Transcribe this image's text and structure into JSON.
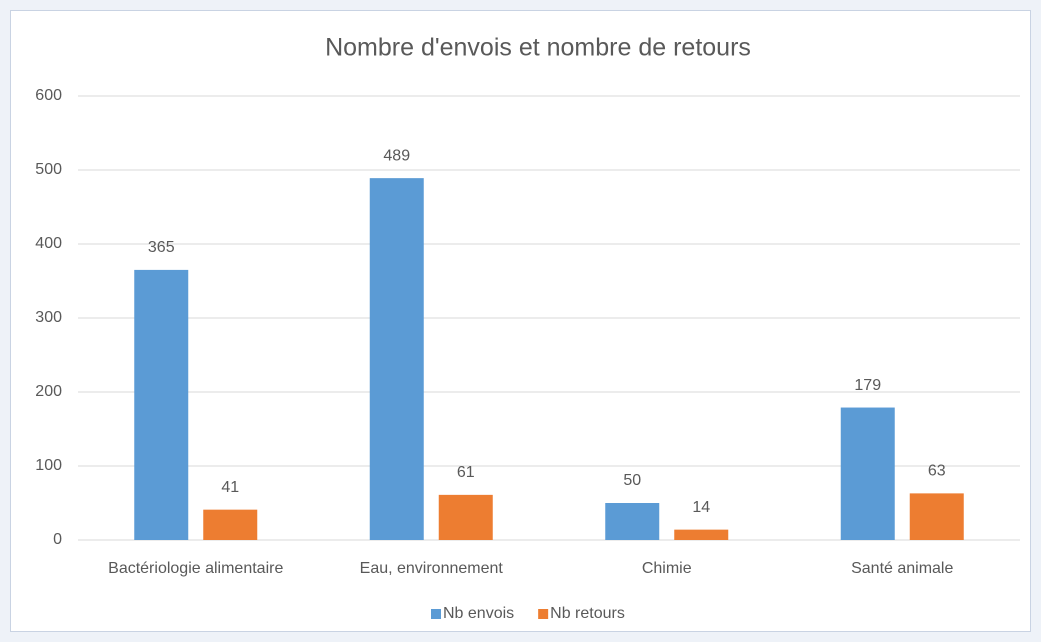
{
  "chart_data": {
    "type": "bar",
    "title": "Nombre d'envois et nombre de retours",
    "categories": [
      "Bactériologie alimentaire",
      "Eau, environnement",
      "Chimie",
      "Santé animale"
    ],
    "series": [
      {
        "name": "Nb envois",
        "color": "#5b9bd5",
        "values": [
          365,
          489,
          50,
          179
        ]
      },
      {
        "name": "Nb retours",
        "color": "#ed7d31",
        "values": [
          41,
          61,
          14,
          63
        ]
      }
    ],
    "ylim": [
      0,
      600
    ],
    "yticks": [
      0,
      100,
      200,
      300,
      400,
      500,
      600
    ],
    "grid": true,
    "legend": "bottom"
  }
}
